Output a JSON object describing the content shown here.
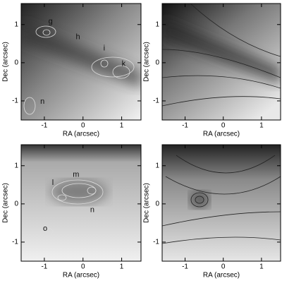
{
  "chart_data": [
    {
      "type": "image",
      "x_label": "RA (arcsec)",
      "y_label": "Dec (arcsec)",
      "xlim": [
        -1.6,
        1.5
      ],
      "ylim": [
        -1.5,
        1.55
      ],
      "xticks": [
        -1,
        0,
        1
      ],
      "yticks": [
        -1,
        0,
        1
      ],
      "annotations": [
        {
          "text": "g",
          "x": -0.84,
          "y": 1.08
        },
        {
          "text": "h",
          "x": -0.13,
          "y": 0.67
        },
        {
          "text": "i",
          "x": 0.55,
          "y": 0.37
        },
        {
          "text": "k",
          "x": 1.05,
          "y": -0.03
        },
        {
          "text": "n",
          "x": -1.05,
          "y": -1.02
        }
      ]
    },
    {
      "type": "image",
      "x_label": "RA (arcsec)",
      "y_label": "Dec (arcsec)",
      "xlim": [
        -1.6,
        1.5
      ],
      "ylim": [
        -1.5,
        1.55
      ],
      "xticks": [
        -1,
        0,
        1
      ],
      "yticks": [
        -1,
        0,
        1
      ]
    },
    {
      "type": "image",
      "x_label": "RA (arcsec)",
      "y_label": "Dec (arcsec)",
      "xlim": [
        -1.6,
        1.5
      ],
      "ylim": [
        -1.5,
        1.55
      ],
      "xticks": [
        -1,
        0,
        1
      ],
      "yticks": [
        -1,
        0,
        1
      ],
      "annotations": [
        {
          "text": "l",
          "x": -0.78,
          "y": 0.55
        },
        {
          "text": "m",
          "x": -0.18,
          "y": 0.76
        },
        {
          "text": "n",
          "x": 0.24,
          "y": -0.16
        },
        {
          "text": "o",
          "x": -0.98,
          "y": -0.65
        }
      ]
    },
    {
      "type": "image",
      "x_label": "RA (arcsec)",
      "y_label": "Dec (arcsec)",
      "xlim": [
        -1.6,
        1.5
      ],
      "ylim": [
        -1.5,
        1.55
      ],
      "xticks": [
        -1,
        0,
        1
      ],
      "yticks": [
        -1,
        0,
        1
      ]
    }
  ]
}
